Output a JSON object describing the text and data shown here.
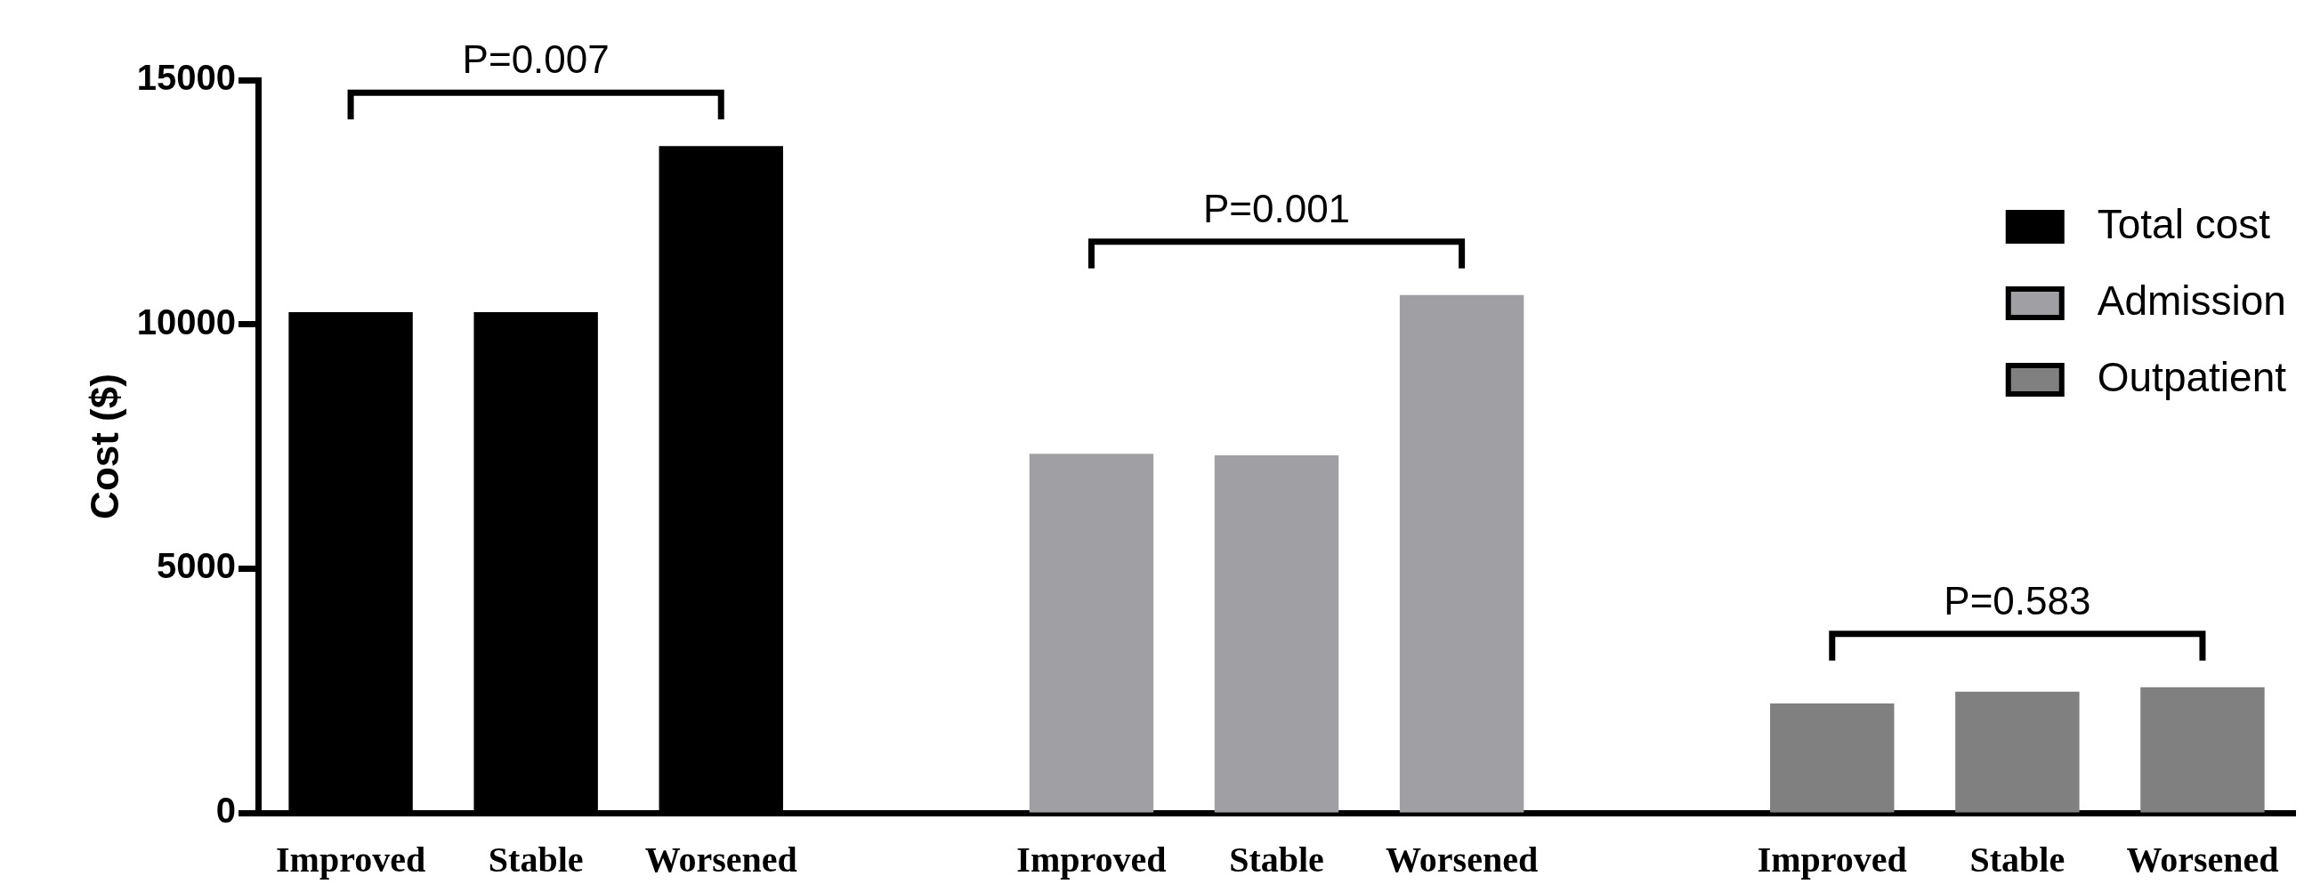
{
  "chart_data": {
    "type": "bar",
    "ylabel": "Cost ($)",
    "categories": [
      "Improved",
      "Stable",
      "Worsened",
      null,
      "Improved",
      "Stable",
      "Worsened",
      null,
      "Improved",
      "Stable",
      "Worsened"
    ],
    "series": [
      {
        "name": "Total cost",
        "color": "#000000",
        "values": [
          10250,
          10250,
          13650,
          null,
          null,
          null,
          null,
          null,
          null,
          null,
          null
        ]
      },
      {
        "name": "Admission",
        "color": "#a0a0a4",
        "values": [
          null,
          null,
          null,
          null,
          7350,
          7320,
          10600,
          null,
          null,
          null,
          null
        ]
      },
      {
        "name": "Outpatient",
        "color": "#808080",
        "values": [
          null,
          null,
          null,
          null,
          null,
          null,
          null,
          null,
          2240,
          2480,
          2570
        ]
      }
    ],
    "ylim": [
      0,
      15000
    ],
    "yticks": [
      0,
      5000,
      10000,
      15000
    ],
    "grid": false,
    "legend": "top right",
    "annotations": [
      "P=0.007",
      "P=0.001",
      "P=0.583"
    ]
  }
}
